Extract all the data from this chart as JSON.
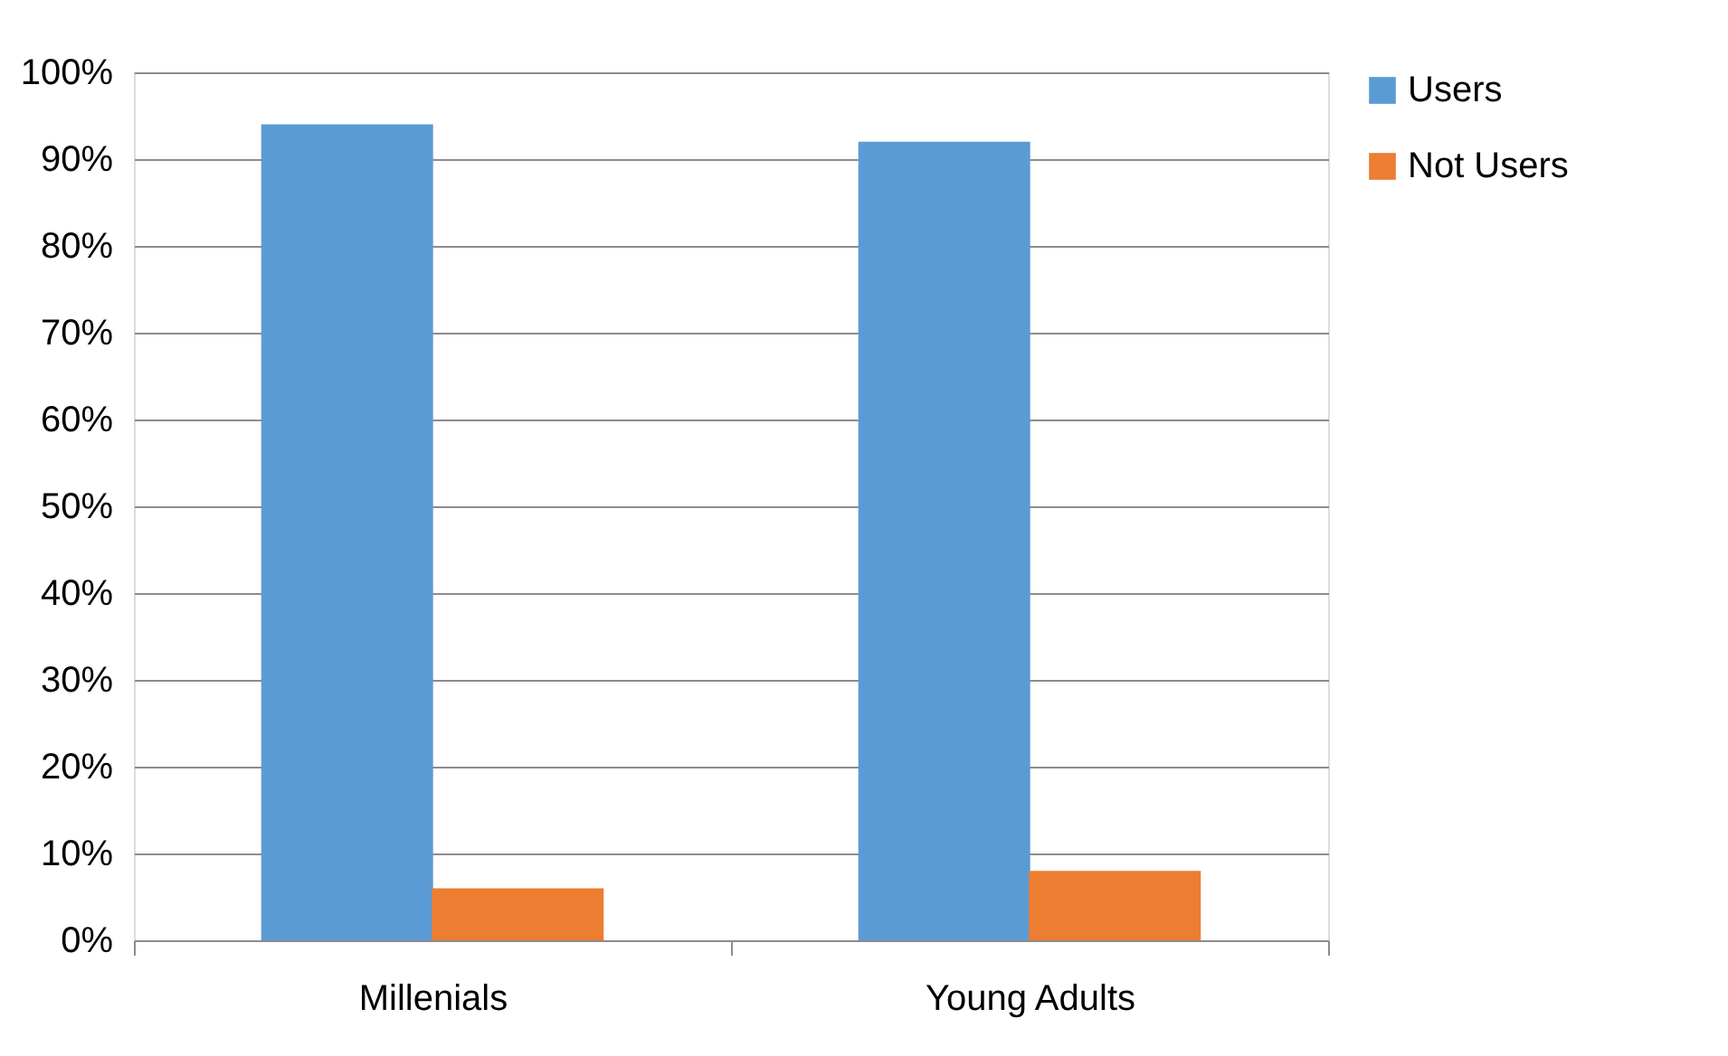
{
  "chart_data": {
    "type": "bar",
    "categories": [
      "Millenials",
      "Young Adults"
    ],
    "series": [
      {
        "name": "Users",
        "color": "#5b9bd5",
        "values": [
          94,
          92
        ]
      },
      {
        "name": "Not Users",
        "color": "#ed7d31",
        "values": [
          6,
          8
        ]
      }
    ],
    "ylim": [
      0,
      100
    ],
    "yticks": [
      {
        "value": 0,
        "label": "0%"
      },
      {
        "value": 10,
        "label": "10%"
      },
      {
        "value": 20,
        "label": "20%"
      },
      {
        "value": 30,
        "label": "30%"
      },
      {
        "value": 40,
        "label": "40%"
      },
      {
        "value": 50,
        "label": "50%"
      },
      {
        "value": 60,
        "label": "60%"
      },
      {
        "value": 70,
        "label": "70%"
      },
      {
        "value": 80,
        "label": "80%"
      },
      {
        "value": 90,
        "label": "90%"
      },
      {
        "value": 100,
        "label": "100%"
      }
    ],
    "grid": "y",
    "legend": "right"
  }
}
